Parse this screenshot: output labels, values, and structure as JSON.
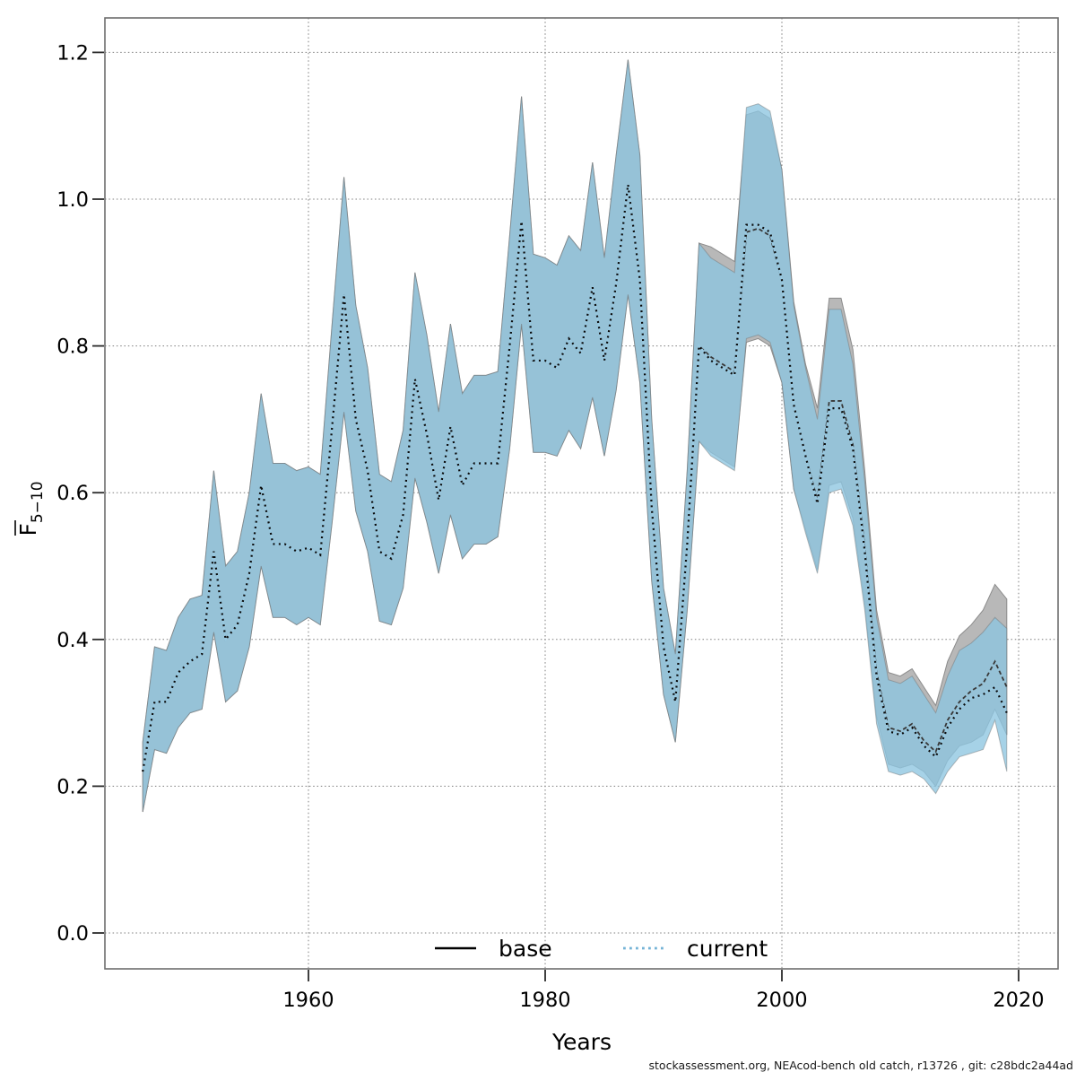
{
  "footer": {
    "text": "stockassessment.org, NEAcod-bench old catch, r13726 , git: c28bdc2a44ad"
  },
  "legend": {
    "items": [
      {
        "label": "base",
        "style": "solid",
        "color": "#000000"
      },
      {
        "label": "current",
        "style": "dotted",
        "color": "#74b3d6"
      }
    ]
  },
  "axes": {
    "x": {
      "label": "Years",
      "ticks": [
        "1960",
        "1980",
        "2000",
        "2020"
      ]
    },
    "y": {
      "label_main": "F",
      "label_overline": true,
      "label_sub": "5−10",
      "ticks": [
        "0.0",
        "0.2",
        "0.4",
        "0.6",
        "0.8",
        "1.0",
        "1.2"
      ]
    }
  },
  "chart_data": {
    "type": "line",
    "title": "",
    "xlabel": "Years",
    "ylabel": "F(bar)_5-10",
    "xlim": [
      1942.8,
      2023.3
    ],
    "ylim": [
      -0.05,
      1.25
    ],
    "grid": "dotted",
    "legend_position": "bottom-center-inside",
    "x": [
      1946,
      1947,
      1948,
      1949,
      1950,
      1951,
      1952,
      1953,
      1954,
      1955,
      1956,
      1957,
      1958,
      1959,
      1960,
      1961,
      1962,
      1963,
      1964,
      1965,
      1966,
      1967,
      1968,
      1969,
      1970,
      1971,
      1972,
      1973,
      1974,
      1975,
      1976,
      1977,
      1978,
      1979,
      1980,
      1981,
      1982,
      1983,
      1984,
      1985,
      1986,
      1987,
      1988,
      1989,
      1990,
      1991,
      1992,
      1993,
      1994,
      1995,
      1996,
      1997,
      1998,
      1999,
      2000,
      2001,
      2002,
      2003,
      2004,
      2005,
      2006,
      2007,
      2008,
      2009,
      2010,
      2011,
      2012,
      2013,
      2014,
      2015,
      2016,
      2017,
      2018,
      2019
    ],
    "series": [
      {
        "name": "base",
        "values": [
          0.22,
          0.315,
          0.315,
          0.355,
          0.37,
          0.38,
          0.52,
          0.4,
          0.42,
          0.49,
          0.61,
          0.53,
          0.53,
          0.52,
          0.525,
          0.515,
          0.69,
          0.87,
          0.7,
          0.63,
          0.52,
          0.51,
          0.57,
          0.755,
          0.68,
          0.59,
          0.69,
          0.61,
          0.64,
          0.64,
          0.64,
          0.8,
          0.97,
          0.78,
          0.78,
          0.77,
          0.81,
          0.79,
          0.88,
          0.78,
          0.885,
          1.02,
          0.89,
          0.58,
          0.39,
          0.315,
          0.53,
          0.8,
          0.785,
          0.775,
          0.765,
          0.955,
          0.96,
          0.95,
          0.89,
          0.72,
          0.65,
          0.59,
          0.725,
          0.725,
          0.665,
          0.525,
          0.355,
          0.28,
          0.275,
          0.285,
          0.262,
          0.247,
          0.29,
          0.315,
          0.33,
          0.34,
          0.37,
          0.335
        ],
        "lo": [
          0.165,
          0.25,
          0.245,
          0.28,
          0.3,
          0.305,
          0.41,
          0.315,
          0.33,
          0.39,
          0.5,
          0.43,
          0.43,
          0.42,
          0.43,
          0.42,
          0.56,
          0.71,
          0.575,
          0.52,
          0.425,
          0.42,
          0.47,
          0.62,
          0.56,
          0.49,
          0.57,
          0.51,
          0.53,
          0.53,
          0.54,
          0.66,
          0.83,
          0.655,
          0.655,
          0.65,
          0.685,
          0.66,
          0.73,
          0.65,
          0.74,
          0.87,
          0.75,
          0.48,
          0.325,
          0.26,
          0.44,
          0.67,
          0.655,
          0.645,
          0.635,
          0.805,
          0.81,
          0.8,
          0.75,
          0.605,
          0.55,
          0.495,
          0.61,
          0.615,
          0.565,
          0.45,
          0.295,
          0.23,
          0.225,
          0.23,
          0.22,
          0.2,
          0.235,
          0.255,
          0.26,
          0.27,
          0.305,
          0.27
        ],
        "hi": [
          0.26,
          0.39,
          0.385,
          0.43,
          0.455,
          0.46,
          0.63,
          0.5,
          0.52,
          0.6,
          0.735,
          0.64,
          0.64,
          0.63,
          0.635,
          0.625,
          0.83,
          1.03,
          0.855,
          0.77,
          0.625,
          0.615,
          0.685,
          0.9,
          0.815,
          0.71,
          0.83,
          0.735,
          0.76,
          0.76,
          0.765,
          0.95,
          1.14,
          0.925,
          0.92,
          0.91,
          0.95,
          0.93,
          1.05,
          0.92,
          1.06,
          1.19,
          1.06,
          0.7,
          0.47,
          0.38,
          0.63,
          0.94,
          0.935,
          0.925,
          0.915,
          1.115,
          1.12,
          1.11,
          1.04,
          0.86,
          0.775,
          0.715,
          0.865,
          0.865,
          0.795,
          0.63,
          0.44,
          0.355,
          0.35,
          0.36,
          0.335,
          0.31,
          0.37,
          0.405,
          0.42,
          0.44,
          0.475,
          0.455
        ]
      },
      {
        "name": "current",
        "values": [
          0.22,
          0.315,
          0.315,
          0.355,
          0.37,
          0.38,
          0.52,
          0.4,
          0.42,
          0.49,
          0.61,
          0.53,
          0.53,
          0.52,
          0.525,
          0.515,
          0.69,
          0.87,
          0.7,
          0.63,
          0.52,
          0.51,
          0.57,
          0.755,
          0.68,
          0.59,
          0.69,
          0.61,
          0.64,
          0.64,
          0.64,
          0.8,
          0.97,
          0.78,
          0.78,
          0.77,
          0.81,
          0.79,
          0.88,
          0.78,
          0.885,
          1.02,
          0.89,
          0.58,
          0.39,
          0.315,
          0.53,
          0.8,
          0.78,
          0.77,
          0.76,
          0.965,
          0.965,
          0.955,
          0.89,
          0.72,
          0.65,
          0.585,
          0.715,
          0.715,
          0.66,
          0.52,
          0.35,
          0.275,
          0.27,
          0.28,
          0.255,
          0.24,
          0.28,
          0.305,
          0.32,
          0.325,
          0.335,
          0.3
        ],
        "lo": [
          0.165,
          0.25,
          0.245,
          0.28,
          0.3,
          0.305,
          0.41,
          0.315,
          0.33,
          0.39,
          0.5,
          0.43,
          0.43,
          0.42,
          0.43,
          0.42,
          0.56,
          0.71,
          0.575,
          0.52,
          0.425,
          0.42,
          0.47,
          0.62,
          0.56,
          0.49,
          0.57,
          0.51,
          0.53,
          0.53,
          0.54,
          0.66,
          0.83,
          0.655,
          0.655,
          0.65,
          0.685,
          0.66,
          0.73,
          0.65,
          0.74,
          0.87,
          0.75,
          0.48,
          0.325,
          0.26,
          0.44,
          0.67,
          0.65,
          0.64,
          0.63,
          0.81,
          0.815,
          0.805,
          0.75,
          0.605,
          0.545,
          0.49,
          0.6,
          0.605,
          0.555,
          0.44,
          0.285,
          0.22,
          0.215,
          0.22,
          0.21,
          0.19,
          0.22,
          0.24,
          0.245,
          0.25,
          0.29,
          0.22
        ],
        "hi": [
          0.26,
          0.39,
          0.385,
          0.43,
          0.455,
          0.46,
          0.63,
          0.5,
          0.52,
          0.6,
          0.735,
          0.64,
          0.64,
          0.63,
          0.635,
          0.625,
          0.83,
          1.03,
          0.855,
          0.77,
          0.625,
          0.615,
          0.685,
          0.9,
          0.815,
          0.71,
          0.83,
          0.735,
          0.76,
          0.76,
          0.765,
          0.95,
          1.14,
          0.925,
          0.92,
          0.91,
          0.95,
          0.93,
          1.05,
          0.92,
          1.06,
          1.19,
          1.06,
          0.7,
          0.47,
          0.38,
          0.63,
          0.94,
          0.92,
          0.91,
          0.9,
          1.125,
          1.13,
          1.12,
          1.04,
          0.855,
          0.77,
          0.7,
          0.85,
          0.85,
          0.775,
          0.615,
          0.43,
          0.345,
          0.34,
          0.35,
          0.325,
          0.3,
          0.35,
          0.385,
          0.395,
          0.41,
          0.43,
          0.415
        ]
      }
    ],
    "colors": {
      "band_base": "#b8b8b8",
      "band_base_edge": "#8c8c8c",
      "band_current": "rgba(141,197,224,0.78)",
      "band_current_edge": "rgba(110,110,110,0.45)",
      "base_line": "#383838",
      "current_line_under": "#98c8e0",
      "current_line_dot": "#0a0a0a",
      "grid": "#7d7d7d",
      "border": "#6e6e6e",
      "tick": "#2b2b2b"
    }
  }
}
